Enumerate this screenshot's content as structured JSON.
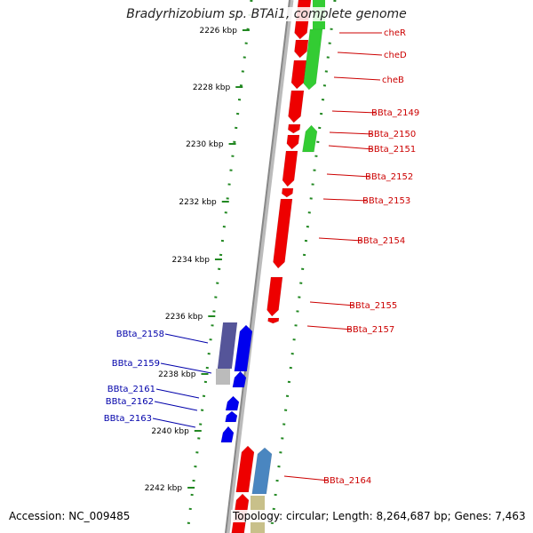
{
  "title": "Bradyrhizobium sp. BTAi1, complete genome",
  "footer": {
    "accession": "Accession: NC_009485",
    "topology": "Topology: circular; Length: 8,264,687 bp; Genes: 7,463"
  },
  "ruler": {
    "ticks": [
      "2226 kbp",
      "2228 kbp",
      "2230 kbp",
      "2232 kbp",
      "2234 kbp",
      "2236 kbp",
      "2238 kbp",
      "2240 kbp",
      "2242 kbp"
    ]
  },
  "colors": {
    "forward_red": "#ee0000",
    "forward_green": "#33cc33",
    "reverse_blue": "#0000ee",
    "reverse_purple": "#555599",
    "steelblue": "#4a86c0",
    "khaki": "#c8c08a",
    "forward_label": "#cc0000",
    "reverse_label": "#0000aa",
    "backbone": "#888888",
    "ruler": "#228822"
  },
  "genes_right": [
    "cheR",
    "cheD",
    "cheB",
    "BBta_2149",
    "BBta_2150",
    "BBta_2151",
    "BBta_2152",
    "BBta_2153",
    "BBta_2154",
    "BBta_2155",
    "BBta_2157",
    "BBta_2164"
  ],
  "genes_left": [
    "BBta_2158",
    "BBta_2159",
    "BBta_2161",
    "BBta_2162",
    "BBta_2163"
  ]
}
